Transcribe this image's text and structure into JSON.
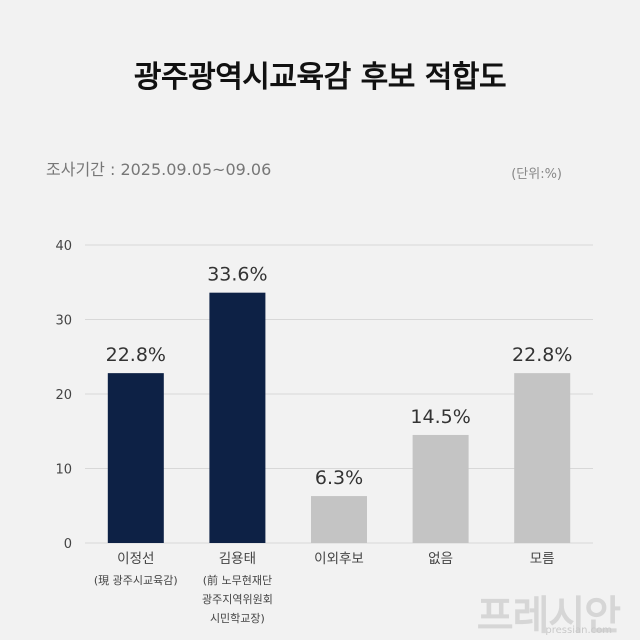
{
  "chart_data": {
    "type": "bar",
    "title": "광주광역시교육감 후보 적합도",
    "subtitle": "조사기간 : 2025.09.05~09.06",
    "unit_label": "(단위:%)",
    "categories": [
      {
        "label": "이정선",
        "sublabel": [
          "(現 광주시교육감)"
        ]
      },
      {
        "label": "김용태",
        "sublabel": [
          "(前 노무현재단",
          "광주지역위원회",
          "시민학교장)"
        ]
      },
      {
        "label": "이외후보",
        "sublabel": []
      },
      {
        "label": "없음",
        "sublabel": []
      },
      {
        "label": "모름",
        "sublabel": []
      }
    ],
    "values": [
      22.8,
      33.6,
      6.3,
      14.5,
      22.8
    ],
    "value_labels": [
      "22.8%",
      "33.6%",
      "6.3%",
      "14.5%",
      "22.8%"
    ],
    "ylim": [
      0,
      40
    ],
    "yticks": [
      0,
      10,
      20,
      30,
      40
    ],
    "grid": true,
    "colors": {
      "candidate": "#0d2145",
      "other": "#c4c4c4",
      "grid": "#d8d8d8",
      "axis_text": "#444444"
    },
    "bar_color_keys": [
      "candidate",
      "candidate",
      "other",
      "other",
      "other"
    ]
  },
  "watermark": {
    "logo": "프레시안",
    "site": "pressian.com"
  }
}
